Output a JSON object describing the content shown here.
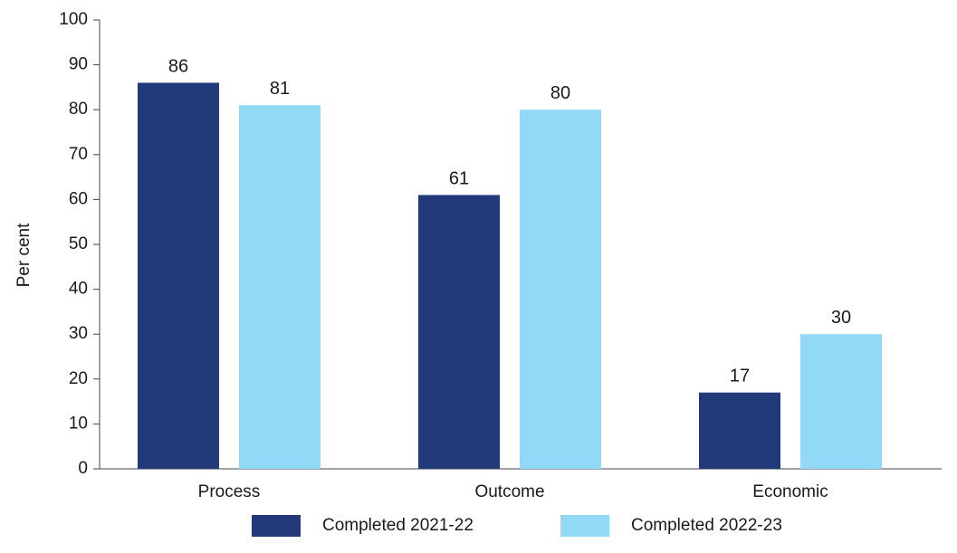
{
  "chart_data": {
    "type": "bar",
    "categories": [
      "Process",
      "Outcome",
      "Economic"
    ],
    "series": [
      {
        "name": "Completed 2021-22",
        "values": [
          86,
          61,
          17
        ],
        "color": "#233a7a"
      },
      {
        "name": "Completed 2022-23",
        "values": [
          81,
          80,
          30
        ],
        "color": "#92d8f7"
      }
    ],
    "ylabel": "Per cent",
    "xlabel": "",
    "ylim": [
      0,
      100
    ],
    "yticks": [
      0,
      10,
      20,
      30,
      40,
      50,
      60,
      70,
      80,
      90,
      100
    ],
    "data_labels": true,
    "grid": false,
    "legend_position": "bottom"
  }
}
